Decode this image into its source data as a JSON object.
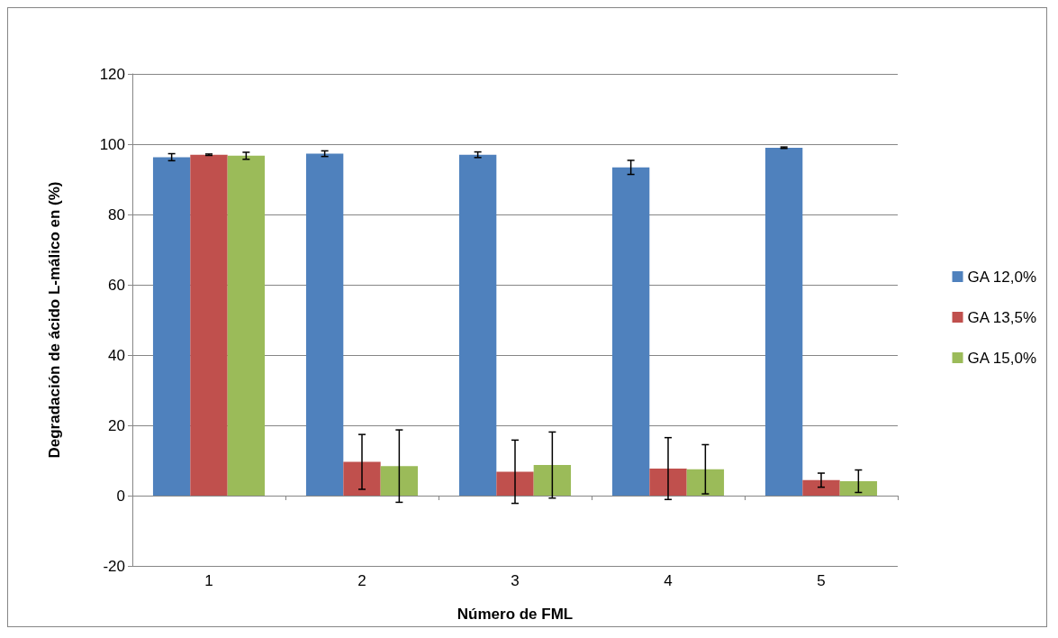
{
  "chart_data": {
    "type": "bar",
    "xlabel": "Número de FML",
    "ylabel": "Degradación de ácido L-málico en (%)",
    "categories": [
      "1",
      "2",
      "3",
      "4",
      "5"
    ],
    "series": [
      {
        "name": "GA 12,0%",
        "color": "#4f81bd",
        "values": [
          96.3,
          97.3,
          97.0,
          93.4,
          99.0
        ],
        "errors": [
          1.0,
          0.8,
          0.8,
          2.0,
          0.2
        ]
      },
      {
        "name": "GA 13,5%",
        "color": "#c0504d",
        "values": [
          97.0,
          9.6,
          6.8,
          7.7,
          4.4
        ],
        "errors": [
          0.2,
          7.8,
          9.0,
          8.8,
          2.0
        ]
      },
      {
        "name": "GA 15,0%",
        "color": "#9bbb59",
        "values": [
          96.7,
          8.4,
          8.7,
          7.5,
          4.1
        ],
        "errors": [
          1.0,
          10.3,
          9.4,
          7.0,
          3.2
        ]
      }
    ],
    "ylim": [
      -20,
      120
    ],
    "yticks": [
      -20,
      0,
      20,
      40,
      60,
      80,
      100,
      120
    ],
    "grid": "y",
    "legend": "right"
  }
}
